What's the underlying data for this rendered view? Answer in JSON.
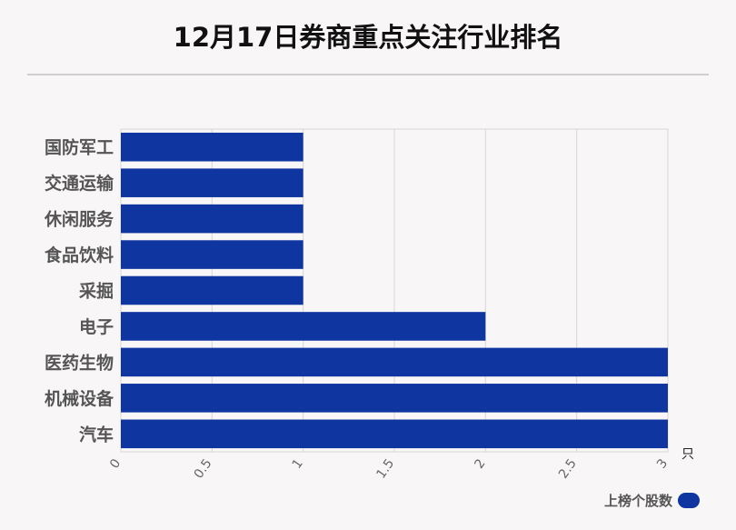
{
  "chart_data": {
    "type": "bar",
    "orientation": "horizontal",
    "title": "12月17日券商重点关注行业排名",
    "categories": [
      "国防军工",
      "交通运输",
      "休闲服务",
      "食品饮料",
      "采掘",
      "电子",
      "医药生物",
      "机械设备",
      "汽车"
    ],
    "series": [
      {
        "name": "上榜个股数",
        "values": [
          1,
          1,
          1,
          1,
          1,
          2,
          3,
          3,
          3
        ]
      }
    ],
    "xunit": "只",
    "xlim": [
      0,
      3
    ],
    "xticks": [
      0,
      0.5,
      1,
      1.5,
      2,
      2.5,
      3
    ],
    "grid": true,
    "legend": "bottom-right",
    "bar_color": "#0f35a1"
  }
}
